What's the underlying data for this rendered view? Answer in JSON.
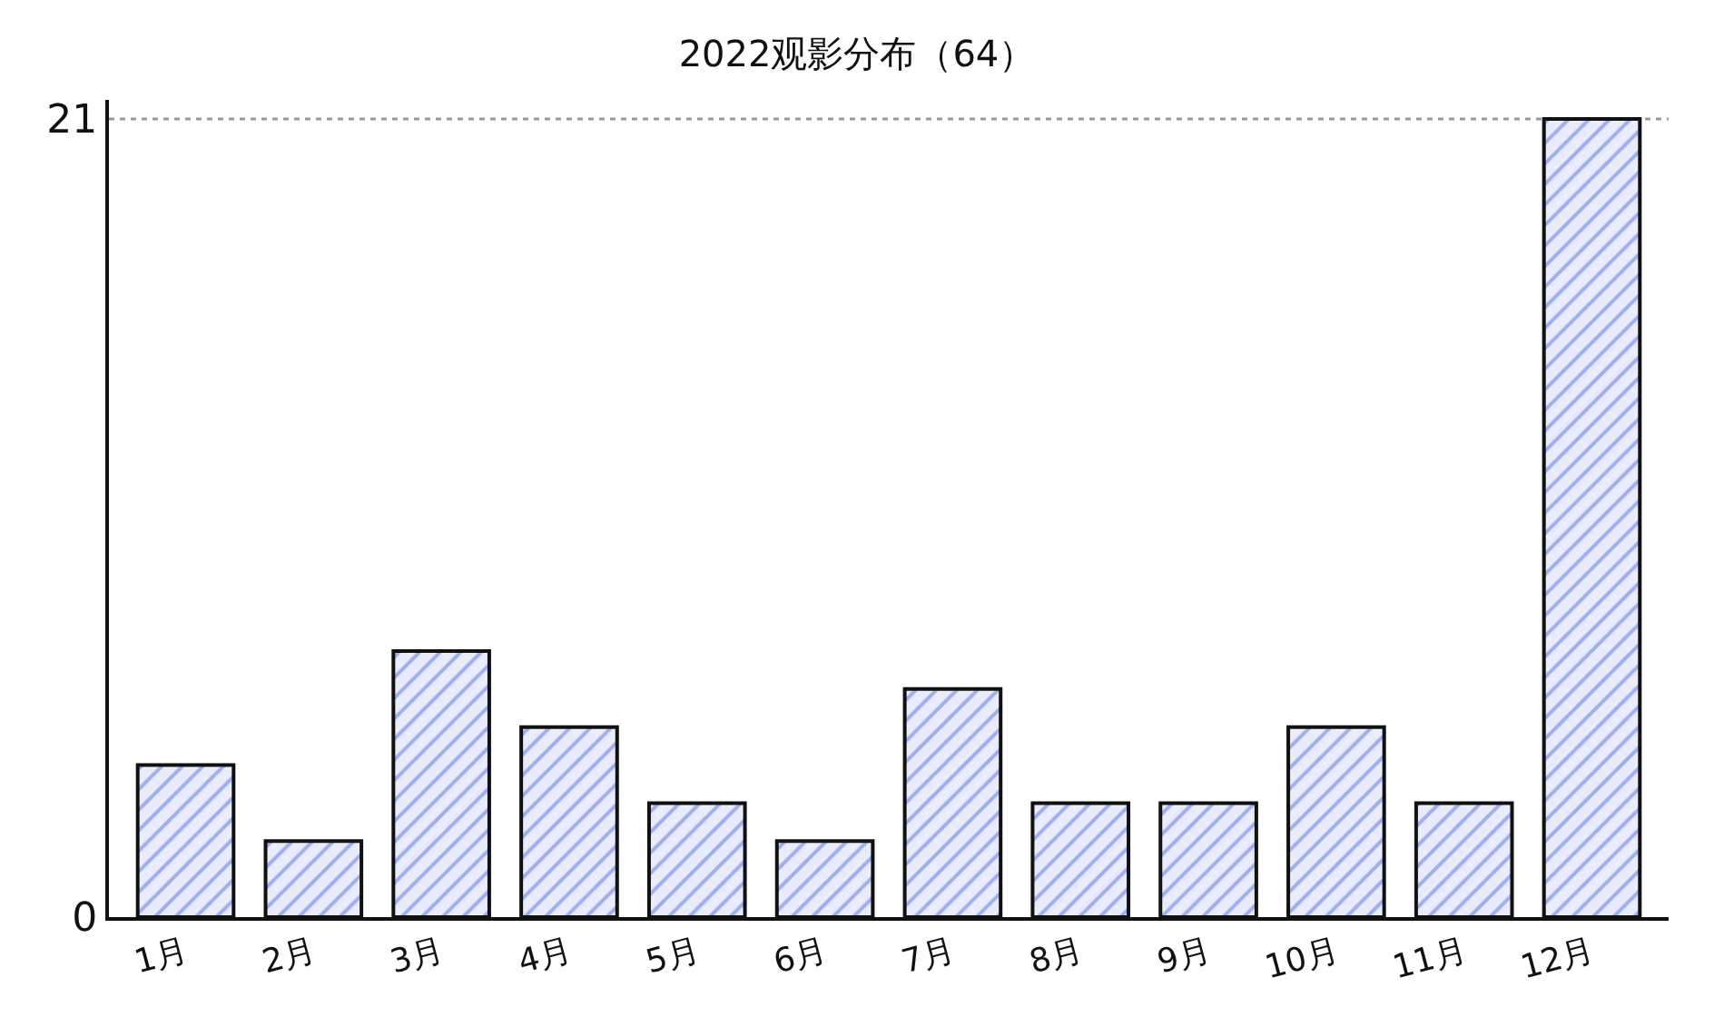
{
  "chart_data": {
    "type": "bar",
    "title": "2022观影分布（64）",
    "categories": [
      "1月",
      "2月",
      "3月",
      "4月",
      "5月",
      "6月",
      "7月",
      "8月",
      "9月",
      "10月",
      "11月",
      "12月"
    ],
    "values": [
      4,
      2,
      7,
      5,
      3,
      2,
      6,
      3,
      3,
      5,
      3,
      21
    ],
    "color": "#5470e8",
    "ylim": [
      0,
      21.5
    ],
    "yticks": [
      0,
      21
    ],
    "grid": false,
    "legend": false,
    "ref_lines": [
      {
        "axis": "y",
        "value": 21,
        "label": null,
        "color": "#999999",
        "line_style": "dotted"
      }
    ]
  }
}
